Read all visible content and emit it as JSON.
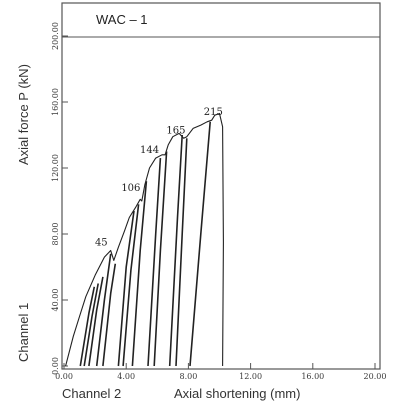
{
  "chart_data": {
    "type": "line",
    "title": "WAC – 1",
    "ylabel": "Axial force   P (kN)",
    "xlabel": "Axial shortening (mm)",
    "y_channel_label": "Channel 1",
    "x_channel_label": "Channel 2",
    "xlim": [
      0,
      20
    ],
    "ylim": [
      0,
      200
    ],
    "x_ticks": [
      {
        "value": 0,
        "label": "0.00"
      },
      {
        "value": 4,
        "label": "4.00"
      },
      {
        "value": 8,
        "label": "8.00"
      },
      {
        "value": 12,
        "label": "12.00"
      },
      {
        "value": 16,
        "label": "16.00"
      },
      {
        "value": 20,
        "label": "20.00"
      }
    ],
    "y_ticks": [
      {
        "value": 0,
        "label": "0.00"
      },
      {
        "value": 40,
        "label": "40.00"
      },
      {
        "value": 80,
        "label": "80.00"
      },
      {
        "value": 120,
        "label": "120.00"
      },
      {
        "value": 160,
        "label": "160.00"
      },
      {
        "value": 200,
        "label": "200.00"
      }
    ],
    "peak_labels": [
      {
        "text": "45",
        "x": 2.4,
        "y": 73
      },
      {
        "text": "106",
        "x": 4.3,
        "y": 106
      },
      {
        "text": "144",
        "x": 5.5,
        "y": 129
      },
      {
        "text": "165",
        "x": 7.2,
        "y": 141
      },
      {
        "text": "215",
        "x": 9.6,
        "y": 152
      }
    ],
    "series": [
      {
        "points": [
          [
            0.1,
            0
          ],
          [
            0.6,
            18
          ],
          [
            1.0,
            30
          ],
          [
            1.4,
            42
          ],
          [
            2.0,
            55
          ],
          [
            2.6,
            66
          ],
          [
            3.0,
            70
          ],
          [
            3.2,
            64
          ],
          [
            3.5,
            72
          ],
          [
            3.9,
            82
          ],
          [
            4.2,
            90
          ],
          [
            4.6,
            96
          ],
          [
            4.9,
            101
          ],
          [
            5.0,
            100
          ],
          [
            5.2,
            110
          ],
          [
            5.5,
            120
          ],
          [
            5.9,
            126
          ],
          [
            6.3,
            128
          ],
          [
            6.5,
            128
          ],
          [
            6.7,
            134
          ],
          [
            7.0,
            139
          ],
          [
            7.4,
            141
          ],
          [
            7.7,
            138
          ],
          [
            7.9,
            139
          ],
          [
            8.3,
            144
          ],
          [
            8.8,
            146
          ],
          [
            9.2,
            148
          ],
          [
            9.5,
            149
          ],
          [
            9.7,
            152
          ],
          [
            10.0,
            153
          ],
          [
            10.2,
            145
          ],
          [
            10.25,
            75
          ],
          [
            10.2,
            0
          ]
        ]
      },
      {
        "points": [
          [
            1.05,
            0
          ],
          [
            1.6,
            32
          ],
          [
            1.95,
            48
          ]
        ]
      },
      {
        "points": [
          [
            1.3,
            0
          ],
          [
            1.8,
            30
          ],
          [
            2.2,
            50
          ]
        ]
      },
      {
        "points": [
          [
            1.6,
            0
          ],
          [
            2.1,
            34
          ],
          [
            2.5,
            54
          ]
        ]
      },
      {
        "points": [
          [
            2.1,
            0
          ],
          [
            2.6,
            40
          ],
          [
            3.0,
            68
          ]
        ]
      },
      {
        "points": [
          [
            2.5,
            0
          ],
          [
            3.0,
            44
          ],
          [
            3.3,
            62
          ]
        ]
      },
      {
        "points": [
          [
            3.5,
            0
          ],
          [
            4.0,
            60
          ],
          [
            4.5,
            94
          ]
        ]
      },
      {
        "points": [
          [
            3.8,
            0
          ],
          [
            4.3,
            58
          ],
          [
            4.8,
            98
          ]
        ]
      },
      {
        "points": [
          [
            4.4,
            0
          ],
          [
            4.9,
            70
          ],
          [
            5.3,
            112
          ]
        ]
      },
      {
        "points": [
          [
            5.4,
            0
          ],
          [
            5.9,
            80
          ],
          [
            6.2,
            126
          ]
        ]
      },
      {
        "points": [
          [
            5.8,
            0
          ],
          [
            6.2,
            70
          ],
          [
            6.6,
            130
          ]
        ]
      },
      {
        "points": [
          [
            6.8,
            0
          ],
          [
            7.3,
            90
          ],
          [
            7.6,
            140
          ]
        ]
      },
      {
        "points": [
          [
            7.2,
            0
          ],
          [
            7.6,
            80
          ],
          [
            7.9,
            138
          ]
        ]
      },
      {
        "points": [
          [
            8.1,
            0
          ],
          [
            8.8,
            80
          ],
          [
            9.4,
            148
          ]
        ]
      }
    ]
  }
}
